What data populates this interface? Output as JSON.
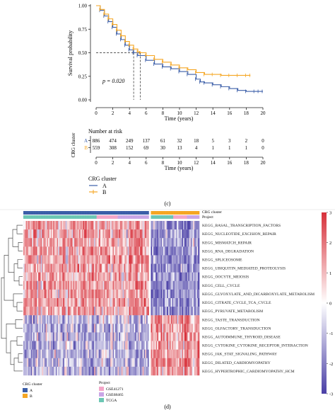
{
  "colors": {
    "cluster_a": "#3b5ea8",
    "cluster_b": "#f5a623",
    "heat_high": "#d7303a",
    "heat_mid": "#ffffff",
    "heat_low": "#4a3fa6",
    "project_gse41271": "#f4a6c8",
    "project_gse68465": "#c9a6e6",
    "project_tcga": "#6cc7b4"
  },
  "panel_c": {
    "label": "(c)",
    "p_value": "p = 0.020",
    "risk_title": "Number at risk",
    "ylabel_km": "Survival probability",
    "xlabel": "Time (years)",
    "ylabel_risk": "CRG cluster",
    "legend_title": "CRG cluster",
    "legend_items": [
      "A",
      "B"
    ],
    "risk_rows": [
      {
        "group": "A",
        "counts": [
          "886",
          "474",
          "249",
          "137",
          "61",
          "32",
          "18",
          "5",
          "3",
          "2",
          "0"
        ]
      },
      {
        "group": "B",
        "counts": [
          "559",
          "308",
          "152",
          "69",
          "30",
          "13",
          "4",
          "1",
          "1",
          "1",
          "0"
        ]
      }
    ]
  },
  "panel_d": {
    "label": "(d)",
    "annotation_labels": [
      "CRG cluster",
      "Project"
    ],
    "legend_cluster_title": "CRG cluster",
    "legend_cluster_items": [
      "A",
      "B"
    ],
    "legend_project_title": "Project",
    "legend_project_items": [
      "GSE41271",
      "GSE68465",
      "TCGA"
    ],
    "colorbar_ticks": [
      "3",
      "2",
      "1",
      "0",
      "-1",
      "-2",
      "-3"
    ]
  },
  "chart_data": [
    {
      "type": "line",
      "title": "",
      "xlabel": "Time (years)",
      "ylabel": "Survival probability",
      "xlim": [
        0,
        20
      ],
      "ylim": [
        0,
        1
      ],
      "xticks": [
        0,
        2,
        4,
        6,
        8,
        10,
        12,
        14,
        16,
        18,
        20
      ],
      "yticks": [
        "0.00",
        "0.25",
        "0.50",
        "0.75",
        "1.00"
      ],
      "median_survival": {
        "A": 4.5,
        "B": 5.3
      },
      "series": [
        {
          "name": "A",
          "x": [
            0,
            0.5,
            1,
            1.5,
            2,
            2.5,
            3,
            3.5,
            4,
            4.5,
            5,
            6,
            7,
            8,
            9,
            10,
            11,
            12,
            12.5,
            13,
            14,
            15,
            16,
            17,
            18,
            19,
            19.5,
            20
          ],
          "y": [
            1.0,
            0.95,
            0.89,
            0.83,
            0.77,
            0.7,
            0.64,
            0.58,
            0.53,
            0.5,
            0.47,
            0.42,
            0.38,
            0.35,
            0.33,
            0.3,
            0.27,
            0.22,
            0.19,
            0.18,
            0.16,
            0.14,
            0.12,
            0.1,
            0.09,
            0.09,
            0.09,
            0.09
          ]
        },
        {
          "name": "B",
          "x": [
            0,
            0.5,
            1,
            1.5,
            2,
            2.5,
            3,
            3.5,
            4,
            4.5,
            5,
            5.3,
            6,
            7,
            8,
            9,
            10,
            11,
            12,
            13,
            14,
            15,
            16,
            17,
            18,
            18.5
          ],
          "y": [
            1.0,
            0.96,
            0.91,
            0.86,
            0.8,
            0.74,
            0.68,
            0.62,
            0.58,
            0.54,
            0.51,
            0.5,
            0.47,
            0.43,
            0.4,
            0.37,
            0.34,
            0.32,
            0.29,
            0.27,
            0.27,
            0.26,
            0.26,
            0.26,
            0.26,
            0.26
          ]
        }
      ]
    },
    {
      "type": "heatmap",
      "rows": [
        "KEGG_BASAL_TRANSCRIPTION_FACTORS",
        "KEGG_NUCLEOTIDE_EXCISION_REPAIR",
        "KEGG_MISMATCH_REPAIR",
        "KEGG_RNA_DEGRADATION",
        "KEGG_SPLICEOSOME",
        "KEGG_UBIQUITIN_MEDIATED_PROTEOLYSIS",
        "KEGG_OOCYTE_MEIOSIS",
        "KEGG_CELL_CYCLE",
        "KEGG_GLYOXYLATE_AND_DICARBOXYLATE_METABOLISM",
        "KEGG_CITRATE_CYCLE_TCA_CYCLE",
        "KEGG_PYRUVATE_METABOLISM",
        "KEGG_TASTE_TRANSDUCTION",
        "KEGG_OLFACTORY_TRANSDUCTION",
        "KEGG_AUTOIMMUNE_THYROID_DISEASE",
        "KEGG_CYTOKINE_CYTOKINE_RECEPTOR_INTERACTION",
        "KEGG_JAK_STAT_SIGNALING_PATHWAY",
        "KEGG_DILATED_CARDIOMYOPATHY",
        "KEGG_HYPERTROPHIC_CARDIOMYOPATHY_HCM"
      ],
      "column_groups": [
        "A",
        "B"
      ],
      "row_mean_in_A": [
        1,
        1,
        1,
        1,
        1,
        1,
        1,
        1,
        1,
        1,
        1,
        -0.8,
        -0.8,
        -0.8,
        -0.8,
        -0.8,
        -0.8,
        -0.8
      ],
      "row_mean_in_B": [
        -1.5,
        -1.5,
        -1.5,
        -1.5,
        -1.5,
        -1.5,
        -1.5,
        -1.5,
        -1.5,
        -1.5,
        -1.5,
        1.2,
        1.2,
        1.2,
        1.2,
        1.2,
        1.2,
        1.2
      ],
      "colorbar_range": [
        -3,
        3
      ]
    }
  ]
}
